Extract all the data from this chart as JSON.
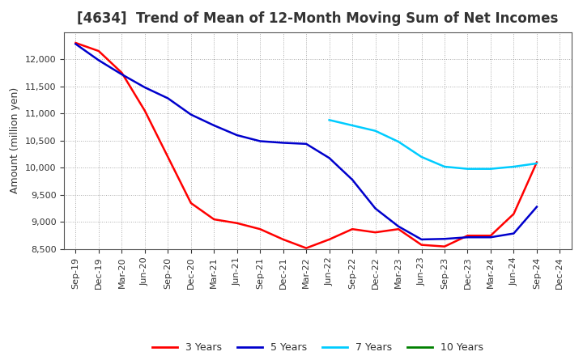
{
  "title": "[4634]  Trend of Mean of 12-Month Moving Sum of Net Incomes",
  "ylabel": "Amount (million yen)",
  "ylim": [
    8500,
    12500
  ],
  "yticks": [
    8500,
    9000,
    9500,
    10000,
    10500,
    11000,
    11500,
    12000
  ],
  "background_color": "#ffffff",
  "grid_color": "#aaaaaa",
  "title_color": "#333333",
  "series": {
    "3years": {
      "color": "#ff0000",
      "label": "3 Years",
      "x": [
        "Sep-19",
        "Dec-19",
        "Mar-20",
        "Jun-20",
        "Sep-20",
        "Dec-20",
        "Mar-21",
        "Jun-21",
        "Sep-21",
        "Dec-21",
        "Mar-22",
        "Jun-22",
        "Sep-22",
        "Dec-22",
        "Mar-23",
        "Jun-23",
        "Sep-23",
        "Dec-23",
        "Mar-24",
        "Jun-24",
        "Sep-24"
      ],
      "y": [
        12300,
        12150,
        11750,
        11050,
        10200,
        9350,
        9050,
        8980,
        8870,
        8680,
        8520,
        8680,
        8870,
        8810,
        8870,
        8580,
        8550,
        8750,
        8750,
        9150,
        10100
      ]
    },
    "5years": {
      "color": "#0000cc",
      "label": "5 Years",
      "x": [
        "Sep-19",
        "Dec-19",
        "Mar-20",
        "Jun-20",
        "Sep-20",
        "Dec-20",
        "Mar-21",
        "Jun-21",
        "Sep-21",
        "Dec-21",
        "Mar-22",
        "Jun-22",
        "Sep-22",
        "Dec-22",
        "Mar-23",
        "Jun-23",
        "Sep-23",
        "Dec-23",
        "Mar-24",
        "Jun-24",
        "Sep-24"
      ],
      "y": [
        12280,
        11980,
        11720,
        11480,
        11280,
        10980,
        10780,
        10600,
        10490,
        10460,
        10440,
        10180,
        9780,
        9250,
        8920,
        8680,
        8690,
        8720,
        8720,
        8790,
        9280
      ]
    },
    "7years": {
      "color": "#00ccff",
      "label": "7 Years",
      "x": [
        "Jun-22",
        "Sep-22",
        "Dec-22",
        "Mar-23",
        "Jun-23",
        "Sep-23",
        "Dec-23",
        "Mar-24",
        "Jun-24",
        "Sep-24"
      ],
      "y": [
        10880,
        10780,
        10680,
        10480,
        10200,
        10020,
        9980,
        9980,
        10020,
        10080
      ]
    },
    "10years": {
      "color": "#008000",
      "label": "10 Years",
      "x": [],
      "y": []
    }
  },
  "xtick_labels": [
    "Sep-19",
    "Dec-19",
    "Mar-20",
    "Jun-20",
    "Sep-20",
    "Dec-20",
    "Mar-21",
    "Jun-21",
    "Sep-21",
    "Dec-21",
    "Mar-22",
    "Jun-22",
    "Sep-22",
    "Dec-22",
    "Mar-23",
    "Jun-23",
    "Sep-23",
    "Dec-23",
    "Mar-24",
    "Jun-24",
    "Sep-24",
    "Dec-24"
  ],
  "title_fontsize": 12,
  "axis_fontsize": 9,
  "tick_fontsize": 8,
  "legend_fontsize": 9
}
